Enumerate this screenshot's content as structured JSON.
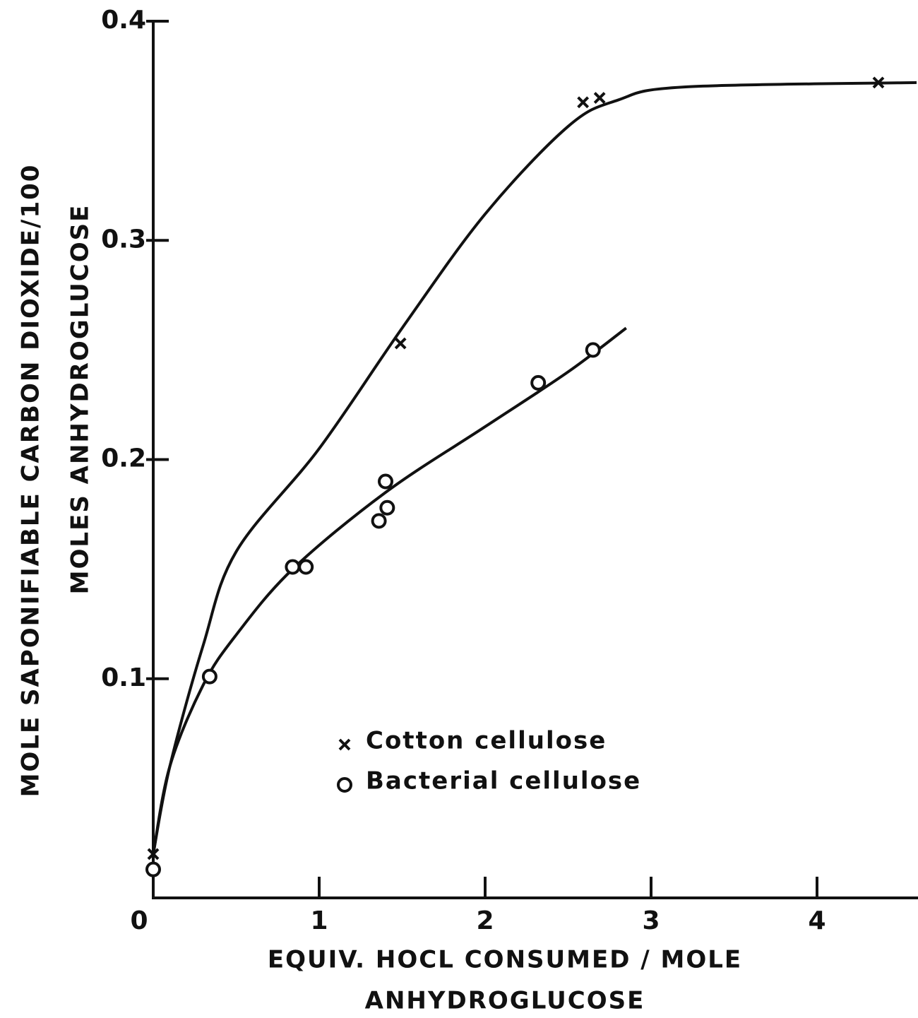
{
  "chart_data": {
    "type": "scatter",
    "xlabel": [
      "EQUIV.  HOCL  CONSUMED / MOLE",
      "ANHYDROGLUCOSE"
    ],
    "ylabel": [
      "MOLE  SAPONIFIABLE  CARBON  DIOXIDE/100",
      "MOLES  ANHYDROGLUCOSE"
    ],
    "xlim": [
      0,
      4.6
    ],
    "ylim": [
      0,
      0.4
    ],
    "xticks": [
      0,
      1,
      2,
      3,
      4
    ],
    "yticks": [
      0.1,
      0.2,
      0.3,
      0.4
    ],
    "series": [
      {
        "name": "Cotton cellulose",
        "marker": "x",
        "color": "#111",
        "x": [
          0,
          1.49,
          2.59,
          2.69,
          4.37
        ],
        "values": [
          0.02,
          0.253,
          0.363,
          0.365,
          0.372
        ]
      },
      {
        "name": "Bacterial cellulose",
        "marker": "o",
        "color": "#111",
        "x": [
          0,
          0.34,
          0.84,
          0.92,
          1.36,
          1.4,
          1.41,
          2.32,
          2.65
        ],
        "values": [
          0.013,
          0.101,
          0.151,
          0.151,
          0.172,
          0.19,
          0.178,
          0.235,
          0.25
        ]
      }
    ],
    "curves": [
      {
        "x": [
          0,
          0.1,
          0.3,
          0.5,
          1,
          1.5,
          2,
          2.5,
          2.8,
          3.2,
          4.6
        ],
        "values": [
          0.02,
          0.06,
          0.115,
          0.158,
          0.205,
          0.26,
          0.312,
          0.352,
          0.364,
          0.37,
          0.372
        ]
      },
      {
        "x": [
          0,
          0.1,
          0.3,
          0.5,
          0.84,
          1.4,
          2,
          2.5,
          2.85
        ],
        "values": [
          0.02,
          0.06,
          0.097,
          0.12,
          0.15,
          0.185,
          0.215,
          0.24,
          0.26
        ]
      }
    ]
  }
}
